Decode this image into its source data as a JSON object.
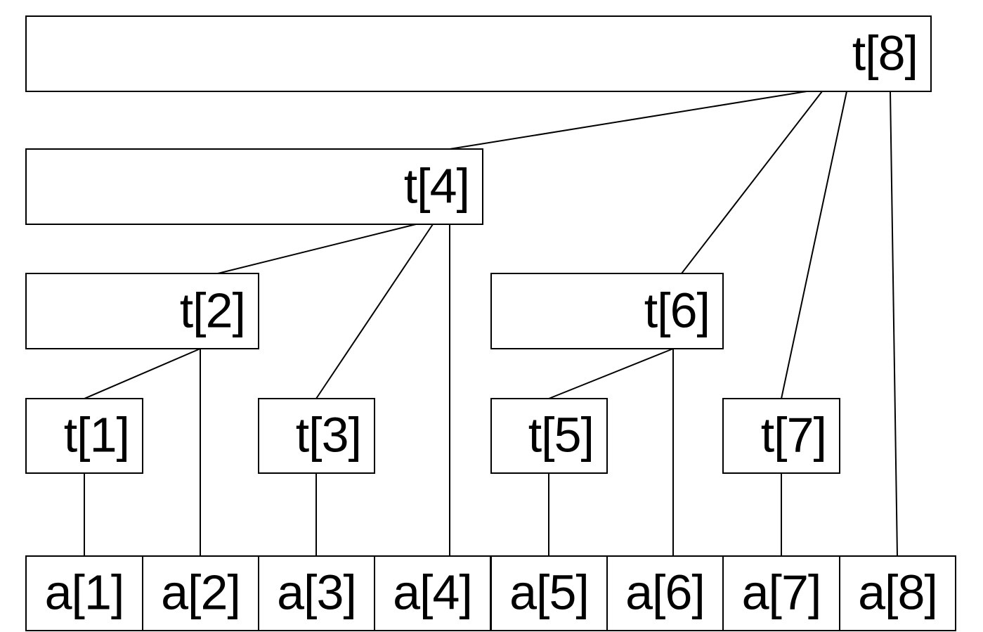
{
  "tree_nodes": {
    "t8": "t[8]",
    "t4": "t[4]",
    "t2": "t[2]",
    "t6": "t[6]",
    "t1": "t[1]",
    "t3": "t[3]",
    "t5": "t[5]",
    "t7": "t[7]"
  },
  "array_cells": [
    "a[1]",
    "a[2]",
    "a[3]",
    "a[4]",
    "a[5]",
    "a[6]",
    "a[7]",
    "a[8]"
  ],
  "edges": [
    [
      "t8",
      "t4"
    ],
    [
      "t8",
      "t6"
    ],
    [
      "t8",
      "t7"
    ],
    [
      "t8",
      "a8"
    ],
    [
      "t4",
      "t2"
    ],
    [
      "t4",
      "t3"
    ],
    [
      "t4",
      "a4"
    ],
    [
      "t2",
      "t1"
    ],
    [
      "t2",
      "a2"
    ],
    [
      "t6",
      "t5"
    ],
    [
      "t6",
      "a6"
    ],
    [
      "t1",
      "a1"
    ],
    [
      "t3",
      "a3"
    ],
    [
      "t5",
      "a5"
    ],
    [
      "t7",
      "a7"
    ]
  ],
  "colors": {
    "line": "#000000",
    "fill": "#ffffff"
  }
}
